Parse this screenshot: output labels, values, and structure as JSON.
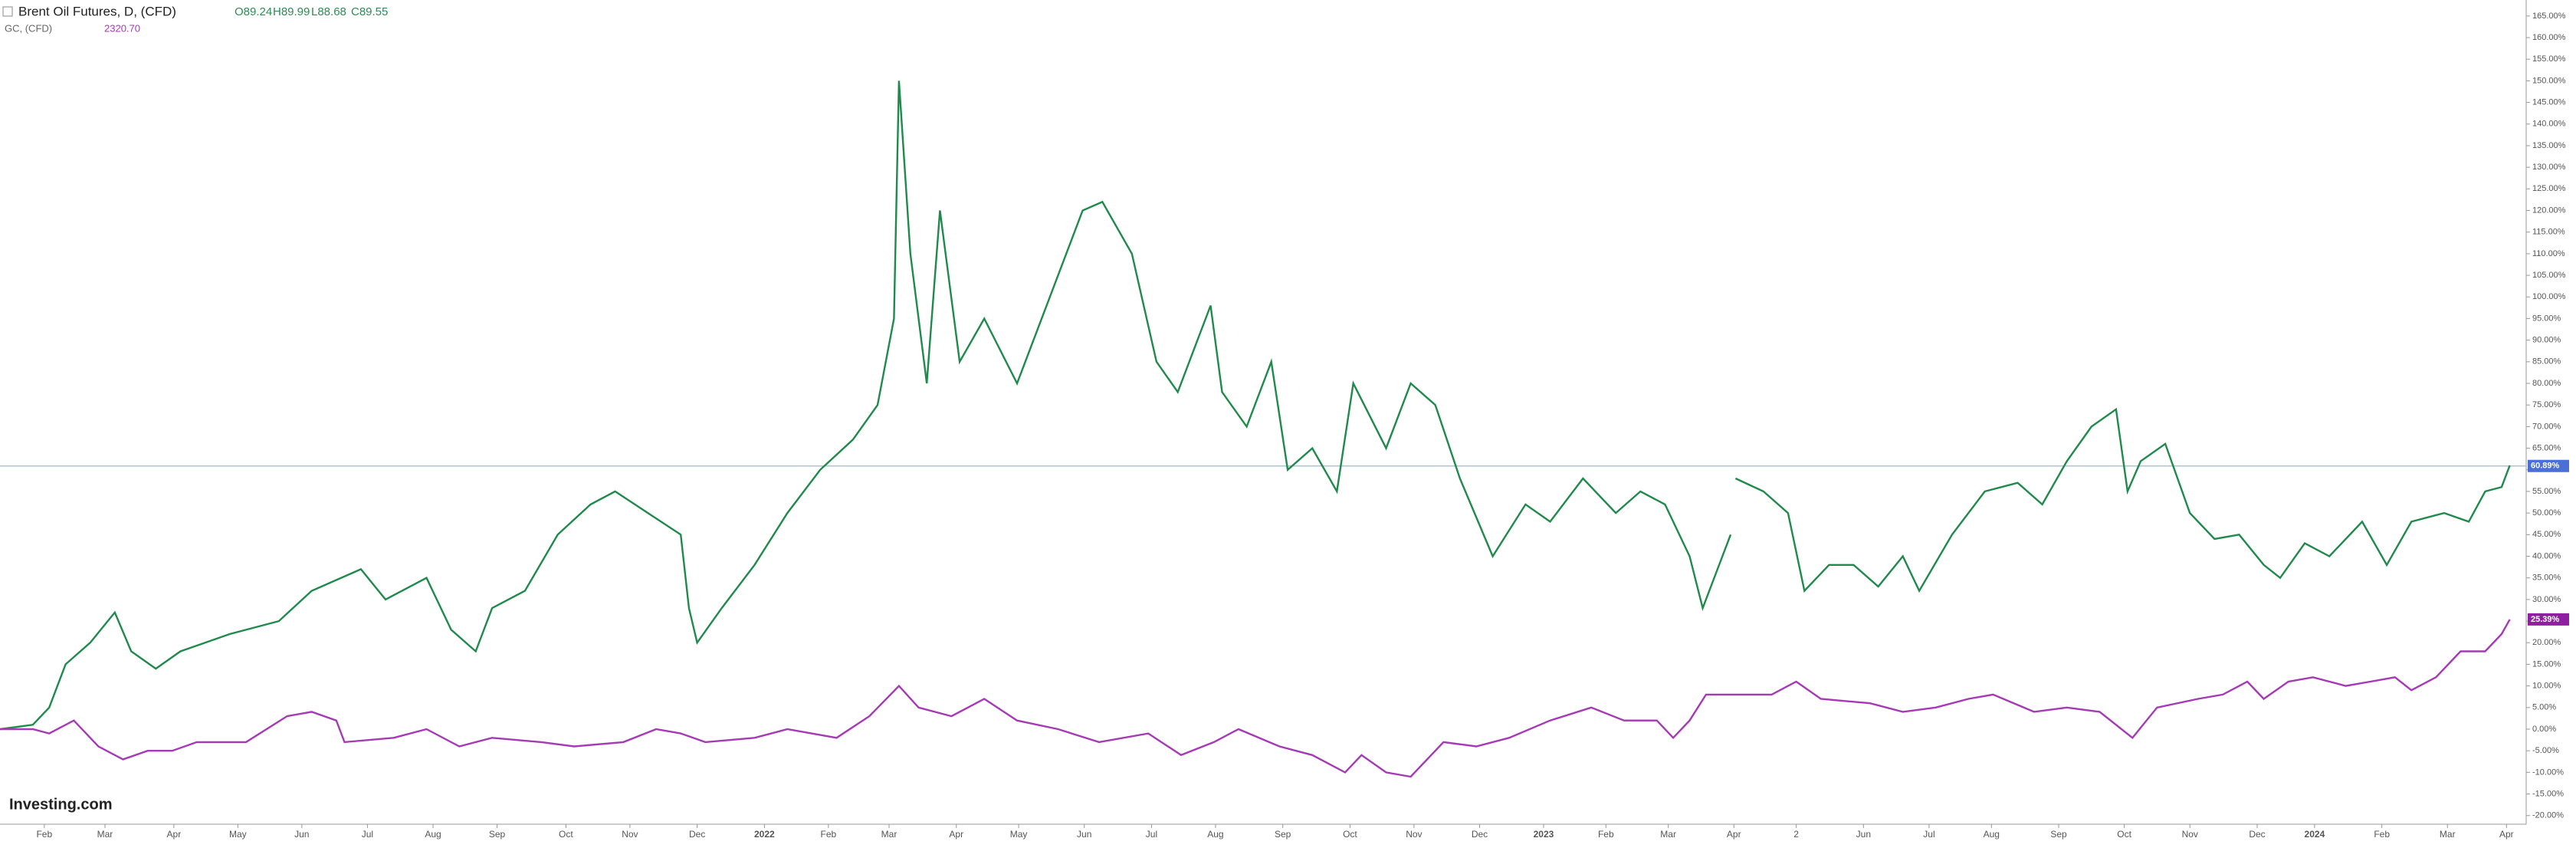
{
  "header": {
    "title": "Brent Oil Futures, D, (CFD)",
    "open": "O89.24",
    "high": "H89.99",
    "low": "L88.68",
    "close": "C89.55",
    "second_symbol": "GC, (CFD)",
    "second_value": "2320.70"
  },
  "logo": "Investing.com",
  "chart_data": {
    "type": "line",
    "xlim": [
      0,
      1540
    ],
    "ylim": [
      -22,
      168.7
    ],
    "yticks": [
      {
        "value": -20,
        "label": "-20.00%"
      },
      {
        "value": -15,
        "label": "-15.00%"
      },
      {
        "value": -10,
        "label": "-10.00%"
      },
      {
        "value": -5,
        "label": "-5.00%"
      },
      {
        "value": 0,
        "label": "0.00%"
      },
      {
        "value": 5,
        "label": "5.00%"
      },
      {
        "value": 10,
        "label": "10.00%"
      },
      {
        "value": 15,
        "label": "15.00%"
      },
      {
        "value": 20,
        "label": "20.00%"
      },
      {
        "value": 25,
        "label": "25.00%"
      },
      {
        "value": 30,
        "label": "30.00%"
      },
      {
        "value": 35,
        "label": "35.00%"
      },
      {
        "value": 40,
        "label": "40.00%"
      },
      {
        "value": 45,
        "label": "45.00%"
      },
      {
        "value": 50,
        "label": "50.00%"
      },
      {
        "value": 55,
        "label": "55.00%"
      },
      {
        "value": 60,
        "label": "60.00%"
      },
      {
        "value": 65,
        "label": "65.00%"
      },
      {
        "value": 70,
        "label": "70.00%"
      },
      {
        "value": 75,
        "label": "75.00%"
      },
      {
        "value": 80,
        "label": "80.00%"
      },
      {
        "value": 85,
        "label": "85.00%"
      },
      {
        "value": 90,
        "label": "90.00%"
      },
      {
        "value": 95,
        "label": "95.00%"
      },
      {
        "value": 100,
        "label": "100.00%"
      },
      {
        "value": 105,
        "label": "105.00%"
      },
      {
        "value": 110,
        "label": "110.00%"
      },
      {
        "value": 115,
        "label": "115.00%"
      },
      {
        "value": 120,
        "label": "120.00%"
      },
      {
        "value": 125,
        "label": "125.00%"
      },
      {
        "value": 130,
        "label": "130.00%"
      },
      {
        "value": 135,
        "label": "135.00%"
      },
      {
        "value": 140,
        "label": "140.00%"
      },
      {
        "value": 145,
        "label": "145.00%"
      },
      {
        "value": 150,
        "label": "150.00%"
      },
      {
        "value": 155,
        "label": "155.00%"
      },
      {
        "value": 160,
        "label": "160.00%"
      },
      {
        "value": 165,
        "label": "165.00%"
      }
    ],
    "xticks": [
      {
        "value": 27,
        "label": "Feb"
      },
      {
        "value": 64,
        "label": "Mar"
      },
      {
        "value": 106,
        "label": "Apr"
      },
      {
        "value": 145,
        "label": "May"
      },
      {
        "value": 184,
        "label": "Jun"
      },
      {
        "value": 224,
        "label": "Jul"
      },
      {
        "value": 264,
        "label": "Aug"
      },
      {
        "value": 303,
        "label": "Sep"
      },
      {
        "value": 345,
        "label": "Oct"
      },
      {
        "value": 384,
        "label": "Nov"
      },
      {
        "value": 425,
        "label": "Dec"
      },
      {
        "value": 466,
        "label": "2022"
      },
      {
        "value": 505,
        "label": "Feb"
      },
      {
        "value": 542,
        "label": "Mar"
      },
      {
        "value": 583,
        "label": "Apr"
      },
      {
        "value": 621,
        "label": "May"
      },
      {
        "value": 661,
        "label": "Jun"
      },
      {
        "value": 702,
        "label": "Jul"
      },
      {
        "value": 741,
        "label": "Aug"
      },
      {
        "value": 782,
        "label": "Sep"
      },
      {
        "value": 823,
        "label": "Oct"
      },
      {
        "value": 862,
        "label": "Nov"
      },
      {
        "value": 902,
        "label": "Dec"
      },
      {
        "value": 941,
        "label": "2023"
      },
      {
        "value": 979,
        "label": "Feb"
      },
      {
        "value": 1017,
        "label": "Mar"
      },
      {
        "value": 1057,
        "label": "Apr"
      },
      {
        "value": 1095,
        "label": "2"
      },
      {
        "value": 1136,
        "label": "Jun"
      },
      {
        "value": 1176,
        "label": "Jul"
      },
      {
        "value": 1214,
        "label": "Aug"
      },
      {
        "value": 1255,
        "label": "Sep"
      },
      {
        "value": 1295,
        "label": "Oct"
      },
      {
        "value": 1335,
        "label": "Nov"
      },
      {
        "value": 1376,
        "label": "Dec"
      },
      {
        "value": 1411,
        "label": "2024"
      },
      {
        "value": 1452,
        "label": "Feb"
      },
      {
        "value": 1492,
        "label": "Mar"
      },
      {
        "value": 1528,
        "label": "Apr"
      }
    ],
    "series": [
      {
        "name": "Brent Oil Futures, D, (CFD)",
        "color": "#1f8a4c",
        "last_label": "60.89%",
        "last_value": 60.89,
        "label_color": "#4a6fd6",
        "x": [
          0,
          20,
          30,
          40,
          55,
          70,
          80,
          95,
          110,
          140,
          170,
          190,
          220,
          235,
          260,
          275,
          290,
          300,
          320,
          340,
          360,
          375,
          395,
          415,
          420,
          425,
          440,
          460,
          480,
          500,
          520,
          535,
          545,
          548,
          555,
          565,
          573,
          585,
          600,
          620,
          640,
          660,
          672,
          690,
          705,
          718,
          738,
          745,
          760,
          775,
          785,
          800,
          815,
          825,
          845,
          860,
          875,
          890,
          910,
          930,
          945,
          965,
          985,
          1000,
          1015,
          1030,
          1038,
          1050,
          1055,
          1056,
          1058,
          1075,
          1090,
          1100,
          1115,
          1130,
          1145,
          1160,
          1170,
          1190,
          1210,
          1230,
          1245,
          1260,
          1275,
          1290,
          1297,
          1305,
          1320,
          1335,
          1350,
          1365,
          1380,
          1390,
          1405,
          1420,
          1440,
          1455,
          1470,
          1490,
          1505,
          1515,
          1525,
          1530
        ],
        "values": [
          0,
          1,
          5,
          15,
          20,
          27,
          18,
          14,
          18,
          22,
          25,
          32,
          37,
          30,
          35,
          23,
          18,
          28,
          32,
          45,
          52,
          55,
          50,
          45,
          28,
          20,
          28,
          38,
          50,
          60,
          67,
          75,
          95,
          150,
          110,
          80,
          120,
          85,
          95,
          80,
          100,
          120,
          122,
          110,
          85,
          78,
          98,
          78,
          70,
          85,
          60,
          65,
          55,
          80,
          65,
          80,
          75,
          58,
          40,
          52,
          48,
          58,
          50,
          55,
          52,
          40,
          28,
          40,
          45,
          null,
          58,
          55,
          50,
          32,
          38,
          38,
          33,
          40,
          32,
          45,
          55,
          57,
          52,
          62,
          70,
          74,
          55,
          62,
          66,
          50,
          44,
          45,
          38,
          35,
          43,
          40,
          48,
          38,
          48,
          50,
          48,
          55,
          56,
          61
        ]
      },
      {
        "name": "GC, (CFD)",
        "color": "#a53ab5",
        "last_label": "25.39%",
        "last_value": 25.39,
        "label_color": "#8e1fa0",
        "x": [
          0,
          20,
          30,
          45,
          60,
          75,
          90,
          105,
          120,
          150,
          175,
          190,
          205,
          210,
          240,
          260,
          280,
          300,
          330,
          350,
          380,
          400,
          415,
          430,
          460,
          480,
          510,
          530,
          548,
          560,
          580,
          600,
          620,
          645,
          670,
          700,
          720,
          740,
          755,
          780,
          800,
          820,
          830,
          845,
          860,
          880,
          900,
          920,
          945,
          970,
          990,
          1010,
          1020,
          1030,
          1040,
          1060,
          1080,
          1095,
          1110,
          1140,
          1160,
          1180,
          1200,
          1215,
          1240,
          1260,
          1280,
          1300,
          1315,
          1340,
          1355,
          1370,
          1380,
          1395,
          1410,
          1430,
          1445,
          1460,
          1470,
          1485,
          1500,
          1515,
          1525,
          1530
        ],
        "values": [
          0,
          0,
          -1,
          2,
          -4,
          -7,
          -5,
          -5,
          -3,
          -3,
          3,
          4,
          2,
          -3,
          -2,
          0,
          -4,
          -2,
          -3,
          -4,
          -3,
          0,
          -1,
          -3,
          -2,
          0,
          -2,
          3,
          10,
          5,
          3,
          7,
          2,
          0,
          -3,
          -1,
          -6,
          -3,
          0,
          -4,
          -6,
          -10,
          -6,
          -10,
          -11,
          -3,
          -4,
          -2,
          2,
          5,
          2,
          2,
          -2,
          2,
          8,
          8,
          8,
          11,
          7,
          6,
          4,
          5,
          7,
          8,
          4,
          5,
          4,
          -2,
          5,
          7,
          8,
          11,
          7,
          11,
          12,
          10,
          11,
          12,
          9,
          12,
          18,
          18,
          22,
          25.39
        ]
      }
    ]
  }
}
